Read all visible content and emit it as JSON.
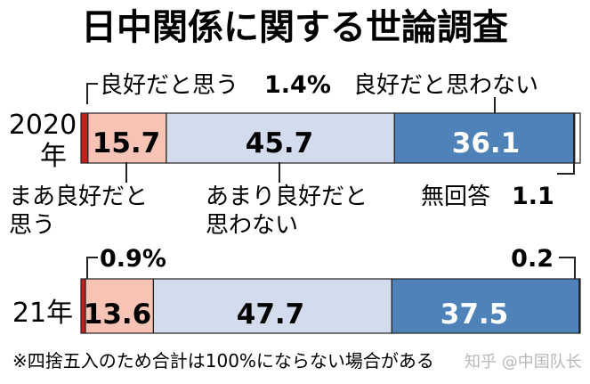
{
  "chart_data": {
    "type": "stacked-bar-horizontal",
    "title": "日中関係に関する世論調査",
    "categories": [
      "2020年",
      "21年"
    ],
    "series": [
      {
        "name": "良好だと思う",
        "values": [
          1.4,
          0.9
        ],
        "color": "#c41e1e"
      },
      {
        "name": "まあ良好だと思う",
        "values": [
          15.7,
          13.6
        ],
        "color": "#f6c3b4"
      },
      {
        "name": "あまり良好だと思わない",
        "values": [
          45.7,
          47.7
        ],
        "color": "#d3dcec"
      },
      {
        "name": "良好だと思わない",
        "values": [
          36.1,
          37.5
        ],
        "color": "#4f82b9"
      },
      {
        "name": "無回答",
        "values": [
          1.1,
          0.2
        ],
        "color": "#ffffff"
      }
    ],
    "bar_labels": {
      "2020": [
        "15.7",
        "45.7",
        "36.1"
      ],
      "21": [
        "13.6",
        "47.7",
        "37.5"
      ]
    },
    "annotations": {
      "good_2020": "良好だと思う",
      "good_2020_value": "1.4%",
      "notgood": "良好だと思わない",
      "fairly_good_line1": "まあ良好だと",
      "fairly_good_line2": "思う",
      "rather_not_line1": "あまり良好だと",
      "rather_not_line2": "思わない",
      "no_answer": "無回答",
      "no_answer_2020_value": "1.1",
      "good_21_value": "0.9%",
      "no_answer_21_value": "0.2"
    },
    "year_labels": {
      "y2020_a": "2020",
      "y2020_b": "年",
      "y21": "21年"
    },
    "footnote": "※四捨五入のため合計は100%にならない場合がある",
    "watermark": "知乎 @中国队长"
  }
}
